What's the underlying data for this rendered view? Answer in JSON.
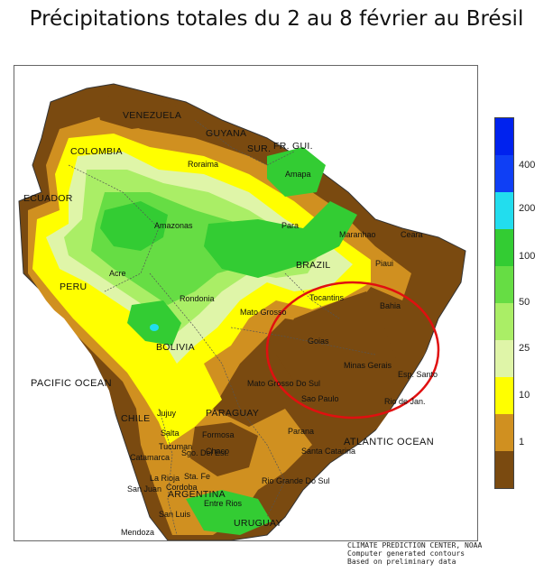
{
  "title": "Précipitations totales du 2 au 8 février au Brésil",
  "map": {
    "countries": [
      "VENEZUELA",
      "COLOMBIA",
      "GUYANA",
      "SUR.",
      "FR. GUI.",
      "ECUADOR",
      "PERU",
      "BOLIVIA",
      "BRAZIL",
      "PARAGUAY",
      "CHILE",
      "ARGENTINA",
      "URUGUAY"
    ],
    "states": [
      "Roraima",
      "Amapa",
      "Amazonas",
      "Para",
      "Maranhao",
      "Ceara",
      "Piaui",
      "Acre",
      "Rondonia",
      "Mato Grosso",
      "Tocantins",
      "Bahia",
      "Goias",
      "Minas Gerais",
      "Esp. Santo",
      "Mato Grosso Do Sul",
      "Sao Paulo",
      "Rio de Jan.",
      "Parana",
      "Santa Catarina",
      "Rio Grande Do Sul",
      "Jujuy",
      "Salta",
      "Formosa",
      "Chaco",
      "Sgo. Del Est.",
      "Catamarca",
      "La Rioja",
      "Tucuman",
      "Sta. Fe",
      "San Juan",
      "Cordoba",
      "Entre Rios",
      "San Luis",
      "Mendoza"
    ],
    "oceans": [
      "PACIFIC OCEAN",
      "ATLANTIC OCEAN"
    ],
    "highlight": "red circle around Goiás, Minas Gerais, São Paulo"
  },
  "legend": {
    "unit": "",
    "ticks": [
      "400",
      "200",
      "100",
      "50",
      "25",
      "10",
      "1"
    ],
    "colors": [
      "#0022ee",
      "#0f3ff5",
      "#22ddee",
      "#33cc33",
      "#66dd44",
      "#aaee66",
      "#dff5a8",
      "#ffff00",
      "#d09020",
      "#7a4a10"
    ]
  },
  "credits": [
    "CLIMATE PREDICTION CENTER, NOAA",
    "Computer generated contours",
    "Based on preliminary data"
  ]
}
